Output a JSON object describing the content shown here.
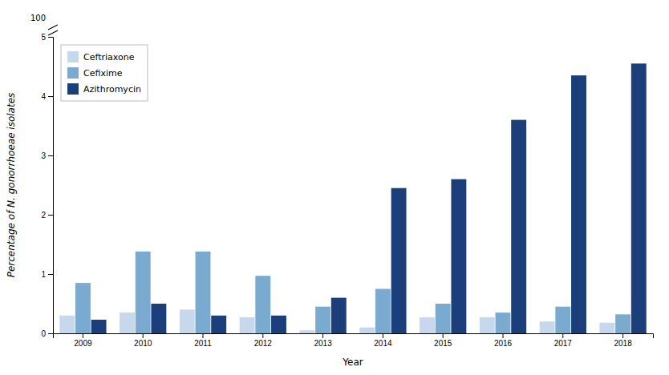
{
  "chart_data": {
    "type": "bar",
    "categories": [
      "2009",
      "2010",
      "2011",
      "2012",
      "2013",
      "2014",
      "2015",
      "2016",
      "2017",
      "2018"
    ],
    "series": [
      {
        "name": "Ceftriaxone",
        "color": "#c8d8ec",
        "values": [
          0.3,
          0.35,
          0.4,
          0.27,
          0.05,
          0.1,
          0.27,
          0.27,
          0.2,
          0.18
        ]
      },
      {
        "name": "Cefixime",
        "color": "#7aaacf",
        "values": [
          0.85,
          1.38,
          1.38,
          0.97,
          0.45,
          0.75,
          0.5,
          0.35,
          0.45,
          0.32
        ]
      },
      {
        "name": "Azithromycin",
        "color": "#1a3f7a",
        "values": [
          0.23,
          0.5,
          0.3,
          0.3,
          0.6,
          2.45,
          2.6,
          3.6,
          4.35,
          4.55
        ]
      }
    ],
    "x_label": "Year",
    "y_label": "Percentage of N. gonorrhoeae isolates",
    "ylim": [
      0,
      5
    ],
    "yticks": [
      0,
      1,
      2,
      3,
      4,
      5
    ],
    "annotations": [
      "100"
    ],
    "grid": false,
    "legend": "upper-left"
  }
}
